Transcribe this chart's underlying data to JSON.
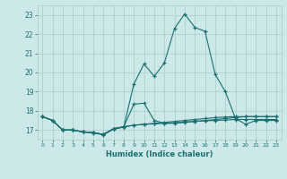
{
  "xlabel": "Humidex (Indice chaleur)",
  "bg_color": "#cce8e8",
  "grid_color": "#aacccc",
  "line_color": "#1a7070",
  "xlim": [
    -0.5,
    23.5
  ],
  "ylim": [
    16.5,
    23.5
  ],
  "yticks": [
    17,
    18,
    19,
    20,
    21,
    22,
    23
  ],
  "xticks": [
    0,
    1,
    2,
    3,
    4,
    5,
    6,
    7,
    8,
    9,
    10,
    11,
    12,
    13,
    14,
    15,
    16,
    17,
    18,
    19,
    20,
    21,
    22,
    23
  ],
  "line1_x": [
    0,
    1,
    2,
    3,
    4,
    5,
    6,
    7,
    8,
    9,
    10,
    11,
    12,
    13,
    14,
    15,
    16,
    17,
    18,
    19,
    20,
    21,
    22,
    23
  ],
  "line1_y": [
    17.7,
    17.5,
    17.0,
    17.0,
    16.9,
    16.85,
    16.75,
    17.05,
    17.15,
    19.4,
    20.45,
    19.8,
    20.5,
    22.3,
    23.05,
    22.35,
    22.15,
    19.9,
    19.0,
    17.6,
    17.3,
    17.5,
    17.5,
    17.5
  ],
  "line2_x": [
    0,
    1,
    2,
    3,
    4,
    5,
    6,
    7,
    8,
    9,
    10,
    11,
    12,
    13,
    14,
    15,
    16,
    17,
    18,
    19,
    20,
    21,
    22,
    23
  ],
  "line2_y": [
    17.7,
    17.5,
    17.0,
    17.0,
    16.9,
    16.87,
    16.77,
    17.07,
    17.17,
    18.35,
    18.4,
    17.5,
    17.35,
    17.35,
    17.4,
    17.45,
    17.5,
    17.55,
    17.6,
    17.65,
    17.7,
    17.7,
    17.7,
    17.7
  ],
  "line3_x": [
    0,
    1,
    2,
    3,
    4,
    5,
    6,
    7,
    8,
    9,
    10,
    11,
    12,
    13,
    14,
    15,
    16,
    17,
    18,
    19,
    20,
    21,
    22,
    23
  ],
  "line3_y": [
    17.7,
    17.5,
    17.0,
    17.0,
    16.9,
    16.87,
    16.77,
    17.07,
    17.17,
    17.25,
    17.3,
    17.35,
    17.4,
    17.45,
    17.5,
    17.55,
    17.6,
    17.65,
    17.68,
    17.7,
    17.7,
    17.7,
    17.7,
    17.7
  ],
  "line4_x": [
    0,
    1,
    2,
    3,
    4,
    5,
    6,
    7,
    8,
    9,
    10,
    11,
    12,
    13,
    14,
    15,
    16,
    17,
    18,
    19,
    20,
    21,
    22,
    23
  ],
  "line4_y": [
    17.7,
    17.5,
    17.0,
    17.0,
    16.9,
    16.87,
    16.77,
    17.07,
    17.17,
    17.25,
    17.3,
    17.32,
    17.35,
    17.38,
    17.42,
    17.45,
    17.48,
    17.5,
    17.52,
    17.55,
    17.55,
    17.55,
    17.55,
    17.55
  ]
}
